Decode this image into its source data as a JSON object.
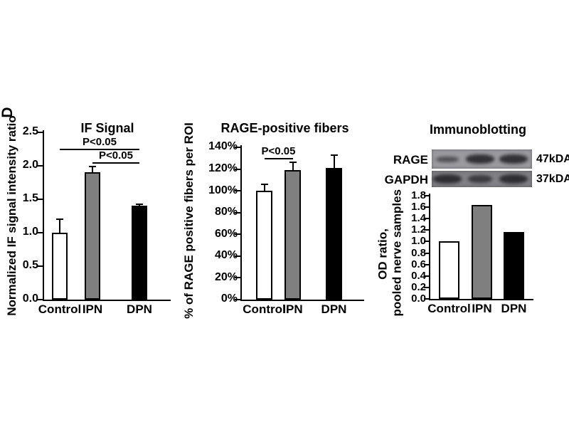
{
  "figure": {
    "panel_label": "D",
    "background_color": "#ffffff",
    "text_color": "#000000"
  },
  "chart_data": [
    {
      "id": "if_signal",
      "type": "bar",
      "title": "IF Signal",
      "xlabel": "",
      "ylabel": "Normalized IF signal intensity ratio",
      "categories": [
        "Control",
        "IPN",
        "DPN"
      ],
      "values": [
        1.0,
        1.9,
        1.4
      ],
      "errors_plus": [
        0.2,
        0.09,
        0.03
      ],
      "bar_colors": [
        "#ffffff",
        "#7f7f7f",
        "#000000"
      ],
      "ylim": [
        0,
        2.5
      ],
      "ytick_values": [
        0.0,
        0.5,
        1.0,
        1.5,
        2.0,
        2.5
      ],
      "ytick_labels": [
        "0.0",
        "0.5",
        "1.0",
        "1.5",
        "2.0",
        "2.5"
      ],
      "grid": false,
      "legend": false,
      "annotations": [
        {
          "text": "P<0.05",
          "from": "Control",
          "to": "DPN"
        },
        {
          "text": "P<0.05",
          "from": "IPN",
          "to": "DPN"
        }
      ]
    },
    {
      "id": "rage_positive_fibers",
      "type": "bar",
      "title": "RAGE-positive fibers",
      "xlabel": "",
      "ylabel": "% of RAGE positive fibers per ROI",
      "categories": [
        "Control",
        "IPN",
        "DPN"
      ],
      "values": [
        100,
        119,
        121
      ],
      "errors_plus": [
        6,
        7,
        12
      ],
      "bar_colors": [
        "#ffffff",
        "#7f7f7f",
        "#000000"
      ],
      "ylim": [
        0,
        140
      ],
      "ytick_values": [
        0,
        20,
        40,
        60,
        80,
        100,
        120,
        140
      ],
      "ytick_labels": [
        "0%",
        "20%",
        "40%",
        "60%",
        "80%",
        "100%",
        "120%",
        "140%"
      ],
      "grid": false,
      "legend": false,
      "annotations": [
        {
          "text": "P<0.05",
          "from": "Control",
          "to": "IPN"
        }
      ]
    },
    {
      "id": "od_ratio",
      "type": "bar",
      "title": "Immunoblotting",
      "xlabel": "",
      "ylabel": "OD ratio, pooled nerve samples",
      "ylabel_lines": [
        "OD ratio,",
        "pooled nerve samples"
      ],
      "categories": [
        "Control",
        "IPN",
        "DPN"
      ],
      "values": [
        1.0,
        1.64,
        1.17
      ],
      "errors_plus": [
        0,
        0,
        0
      ],
      "bar_colors": [
        "#ffffff",
        "#7f7f7f",
        "#000000"
      ],
      "ylim": [
        0,
        1.8
      ],
      "ytick_values": [
        0.0,
        0.2,
        0.4,
        0.6,
        0.8,
        1.0,
        1.2,
        1.4,
        1.6,
        1.8
      ],
      "ytick_labels": [
        "0.0",
        "0.2",
        "0.4",
        "0.6",
        "0.8",
        "1.0",
        "1.2",
        "1.4",
        "1.6",
        "1.8"
      ],
      "grid": false,
      "legend": false,
      "annotations": []
    }
  ],
  "immunoblot": {
    "lanes": [
      "Control",
      "IPN",
      "DPN"
    ],
    "rows": [
      {
        "protein": "RAGE",
        "weight": "47kDA",
        "band_intensities": [
          "weak",
          "strong",
          "strong"
        ]
      },
      {
        "protein": "GAPDH",
        "weight": "37kDA",
        "band_intensities": [
          "strong",
          "medium",
          "strong"
        ]
      }
    ],
    "strip_colors": [
      "#9b9b9f",
      "#818185"
    ],
    "band_color": "#232327"
  }
}
